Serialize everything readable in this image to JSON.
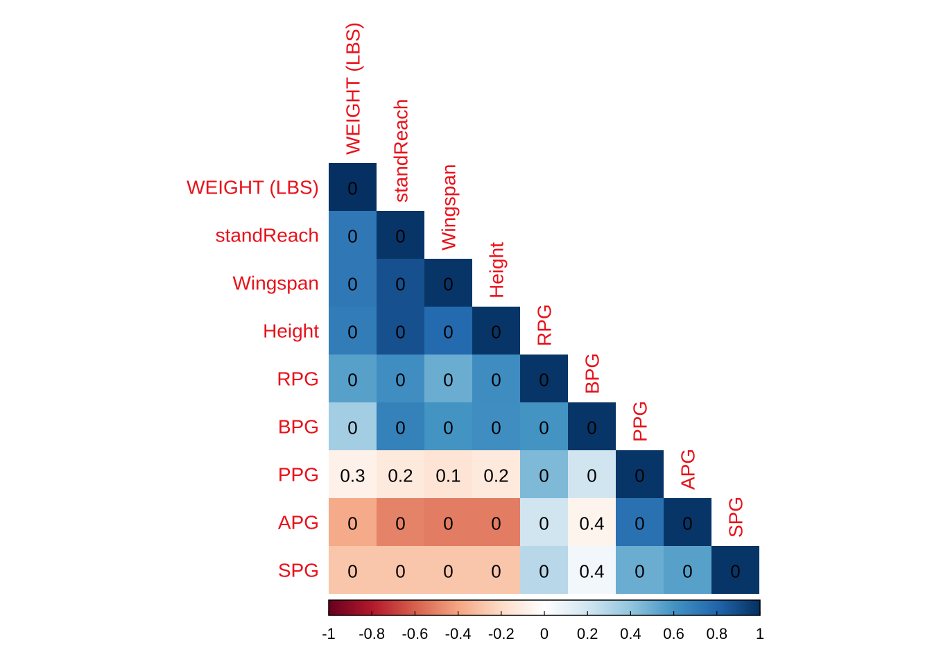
{
  "chart_data": {
    "type": "heatmap",
    "shape": "lower-triangle",
    "variables": [
      "WEIGHT (LBS)",
      "standReach",
      "Wingspan",
      "Height",
      "RPG",
      "BPG",
      "PPG",
      "APG",
      "SPG"
    ],
    "cell_color_values": [
      [
        1.0
      ],
      [
        0.72,
        0.98
      ],
      [
        0.72,
        0.88,
        0.98
      ],
      [
        0.7,
        0.88,
        0.78,
        0.98
      ],
      [
        0.55,
        0.62,
        0.5,
        0.63,
        0.98
      ],
      [
        0.35,
        0.68,
        0.6,
        0.62,
        0.6,
        0.98
      ],
      [
        -0.08,
        -0.12,
        -0.15,
        -0.12,
        0.45,
        0.2,
        0.98
      ],
      [
        -0.38,
        -0.5,
        -0.52,
        -0.52,
        0.2,
        -0.06,
        0.75,
        0.98
      ],
      [
        -0.28,
        -0.28,
        -0.28,
        -0.28,
        0.28,
        0.06,
        0.5,
        0.55,
        0.98
      ]
    ],
    "cell_labels": [
      [
        "0"
      ],
      [
        "0",
        "0"
      ],
      [
        "0",
        "0",
        "0"
      ],
      [
        "0",
        "0",
        "0",
        "0"
      ],
      [
        "0",
        "0",
        "0",
        "0",
        "0"
      ],
      [
        "0",
        "0",
        "0",
        "0",
        "0",
        "0"
      ],
      [
        "0.3",
        "0.2",
        "0.1",
        "0.2",
        "0",
        "0",
        "0"
      ],
      [
        "0",
        "0",
        "0",
        "0",
        "0",
        "0.4",
        "0",
        "0"
      ],
      [
        "0",
        "0",
        "0",
        "0",
        "0",
        "0.4",
        "0",
        "0",
        "0"
      ]
    ],
    "colorbar": {
      "ticks": [
        "-1",
        "-0.8",
        "-0.6",
        "-0.4",
        "-0.2",
        "0",
        "0.2",
        "0.4",
        "0.6",
        "0.8",
        "1"
      ],
      "range": [
        -1,
        1
      ],
      "position": "bottom"
    },
    "colors": {
      "label": "#e8111a",
      "palette": [
        "#67001f",
        "#b2182b",
        "#d6604d",
        "#f4a582",
        "#fddbc7",
        "#ffffff",
        "#d1e5f0",
        "#92c5de",
        "#4393c3",
        "#2166ac",
        "#053061"
      ]
    }
  }
}
